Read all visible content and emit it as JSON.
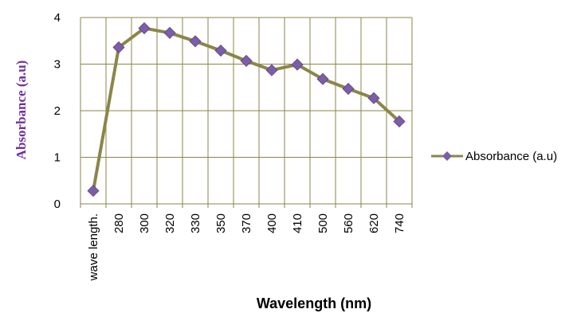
{
  "chart_data": {
    "type": "line",
    "categories": [
      "wave length.",
      "280",
      "300",
      "320",
      "330",
      "350",
      "370",
      "400",
      "410",
      "500",
      "560",
      "620",
      "740"
    ],
    "series": [
      {
        "name": "Absorbance (a.u)",
        "values": [
          0.28,
          3.36,
          3.77,
          3.67,
          3.49,
          3.29,
          3.07,
          2.87,
          2.99,
          2.68,
          2.47,
          2.27,
          1.77
        ]
      }
    ],
    "xlabel": "Wavelength (nm)",
    "ylabel": "Absorbance (a.u)",
    "ylim": [
      0,
      4
    ],
    "yticks": [
      0,
      1,
      2,
      3,
      4
    ],
    "grid": true,
    "legend_position": "right",
    "colors": {
      "line": "#8b8649",
      "marker": "#7b5ea7",
      "grid": "#8b8649",
      "ylabel": "#7030a0"
    }
  }
}
